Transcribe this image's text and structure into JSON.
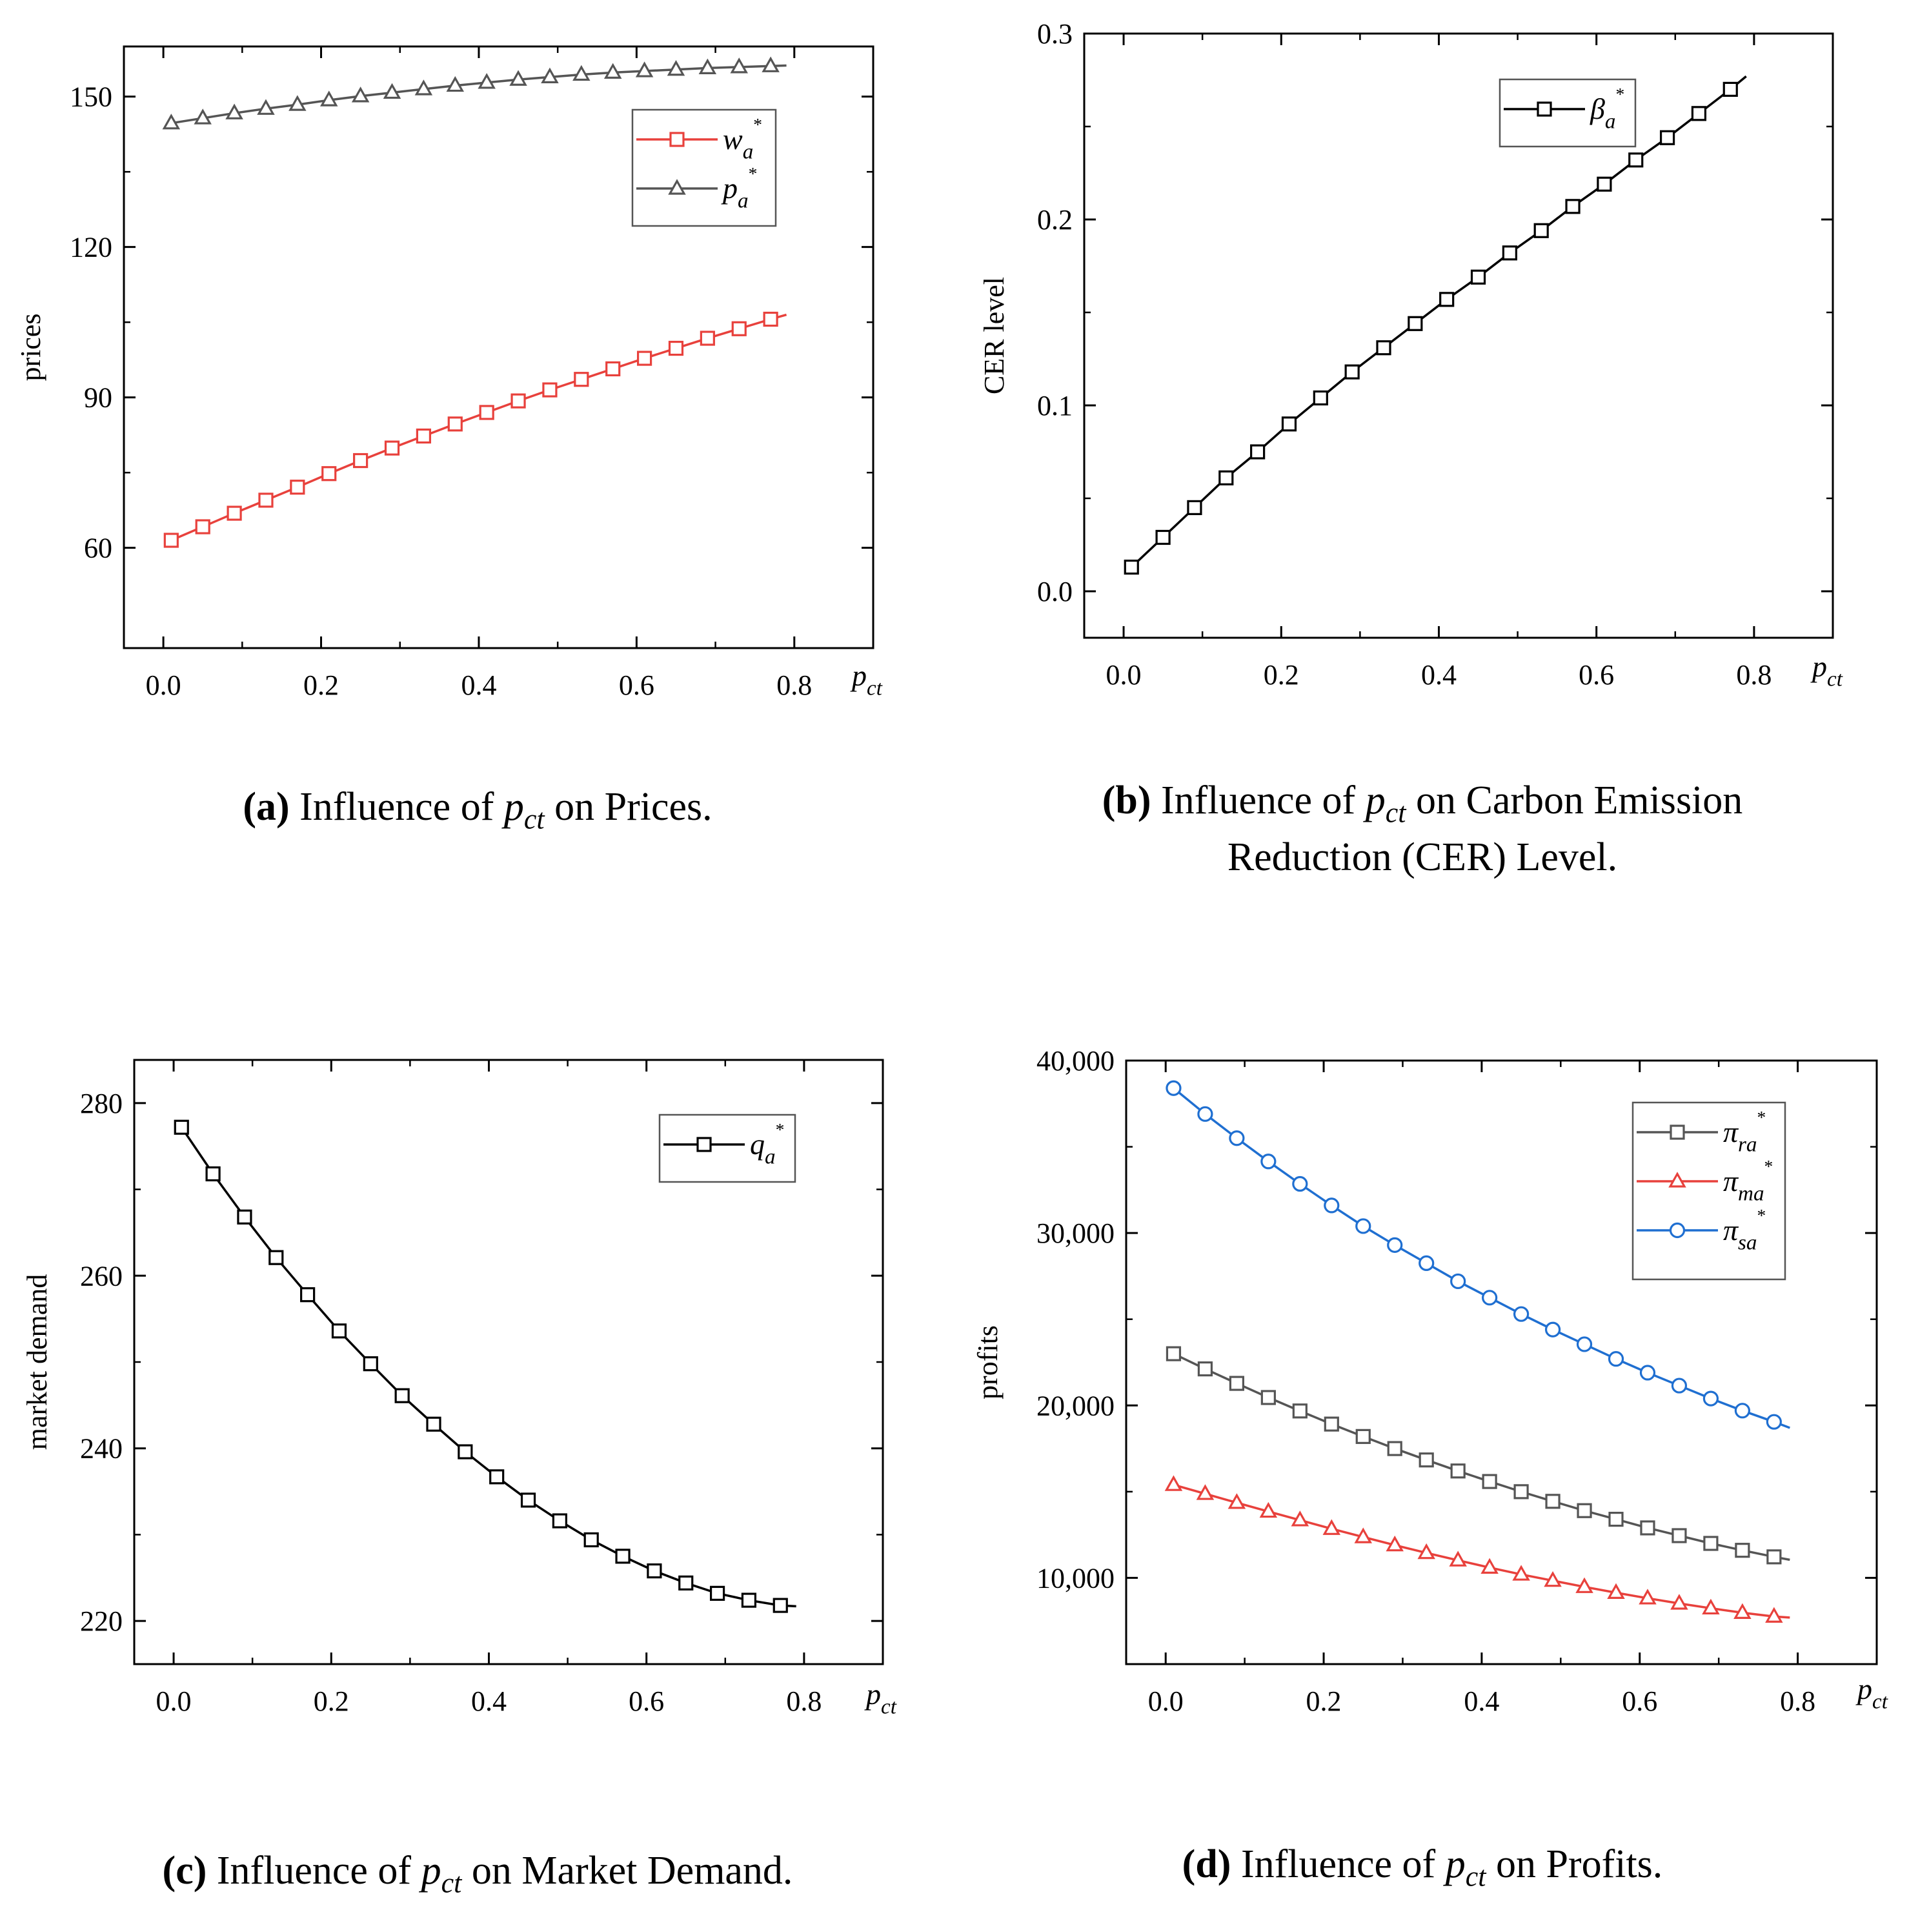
{
  "chart_data": [
    {
      "type": "line",
      "xlabel_var": "p",
      "xlabel_sub": "ct",
      "ylabel": "prices",
      "xlim": [
        -0.05,
        0.9
      ],
      "ylim": [
        40,
        160
      ],
      "xticks": [
        0.0,
        0.2,
        0.4,
        0.6,
        0.8
      ],
      "xtick_labels": [
        "0.0",
        "0.2",
        "0.4",
        "0.6",
        "0.8"
      ],
      "yticks": [
        60,
        90,
        120,
        150
      ],
      "ytick_labels": [
        "60",
        "90",
        "120",
        "150"
      ],
      "legend_position": "top-right",
      "x": [
        0.01,
        0.05,
        0.09,
        0.13,
        0.17,
        0.21,
        0.25,
        0.29,
        0.33,
        0.37,
        0.41,
        0.45,
        0.49,
        0.53,
        0.57,
        0.61,
        0.65,
        0.69,
        0.73,
        0.77
      ],
      "series": [
        {
          "name": "w",
          "sub": "a",
          "sup": "*",
          "color": "#e8413c",
          "marker": "square",
          "line_end": [
            0.79,
            106.5
          ],
          "values": [
            61.5,
            64.2,
            66.9,
            69.5,
            72.1,
            74.8,
            77.4,
            79.9,
            82.3,
            84.7,
            87.0,
            89.3,
            91.5,
            93.6,
            95.7,
            97.8,
            99.8,
            101.8,
            103.7,
            105.6
          ]
        },
        {
          "name": "p",
          "sub": "a",
          "sup": "*",
          "color": "#555555",
          "marker": "triangle",
          "line_end": [
            0.79,
            156.2
          ],
          "values": [
            144.7,
            145.7,
            146.7,
            147.6,
            148.4,
            149.3,
            150.1,
            150.8,
            151.5,
            152.2,
            152.8,
            153.4,
            153.9,
            154.4,
            154.8,
            155.1,
            155.4,
            155.7,
            155.9,
            156.1
          ]
        }
      ]
    },
    {
      "type": "line",
      "xlabel_var": "p",
      "xlabel_sub": "ct",
      "ylabel": "CER level",
      "xlim": [
        -0.05,
        0.9
      ],
      "ylim": [
        -0.025,
        0.3
      ],
      "xticks": [
        0.0,
        0.2,
        0.4,
        0.6,
        0.8
      ],
      "xtick_labels": [
        "0.0",
        "0.2",
        "0.4",
        "0.6",
        "0.8"
      ],
      "yticks": [
        0.0,
        0.1,
        0.2,
        0.3
      ],
      "ytick_labels": [
        "0.0",
        "0.1",
        "0.2",
        "0.3"
      ],
      "legend_position": "top-right",
      "x": [
        0.01,
        0.05,
        0.09,
        0.13,
        0.17,
        0.21,
        0.25,
        0.29,
        0.33,
        0.37,
        0.41,
        0.45,
        0.49,
        0.53,
        0.57,
        0.61,
        0.65,
        0.69,
        0.73,
        0.77
      ],
      "series": [
        {
          "name": "β",
          "sub": "a",
          "sup": "*",
          "color": "#000000",
          "marker": "square",
          "line_end": [
            0.79,
            0.277
          ],
          "values": [
            0.013,
            0.029,
            0.045,
            0.061,
            0.075,
            0.09,
            0.104,
            0.118,
            0.131,
            0.144,
            0.157,
            0.169,
            0.182,
            0.194,
            0.207,
            0.219,
            0.232,
            0.244,
            0.257,
            0.27
          ]
        }
      ]
    },
    {
      "type": "line",
      "xlabel_var": "p",
      "xlabel_sub": "ct",
      "ylabel": "market demand",
      "xlim": [
        -0.05,
        0.9
      ],
      "ylim": [
        215,
        285
      ],
      "xticks": [
        0.0,
        0.2,
        0.4,
        0.6,
        0.8
      ],
      "xtick_labels": [
        "0.0",
        "0.2",
        "0.4",
        "0.6",
        "0.8"
      ],
      "yticks": [
        220,
        240,
        260,
        280
      ],
      "ytick_labels": [
        "220",
        "240",
        "260",
        "280"
      ],
      "legend_position": "top-right",
      "x": [
        0.01,
        0.05,
        0.09,
        0.13,
        0.17,
        0.21,
        0.25,
        0.29,
        0.33,
        0.37,
        0.41,
        0.45,
        0.49,
        0.53,
        0.57,
        0.61,
        0.65,
        0.69,
        0.73,
        0.77
      ],
      "series": [
        {
          "name": "q",
          "sub": "a",
          "sup": "*",
          "color": "#000000",
          "marker": "square",
          "line_end": [
            0.79,
            221.7
          ],
          "values": [
            277.2,
            271.8,
            266.8,
            262.1,
            257.8,
            253.6,
            249.8,
            246.1,
            242.8,
            239.6,
            236.7,
            234.0,
            231.6,
            229.4,
            227.5,
            225.8,
            224.4,
            223.2,
            222.4,
            221.8
          ]
        }
      ]
    },
    {
      "type": "line",
      "xlabel_var": "p",
      "xlabel_sub": "ct",
      "ylabel": "profits",
      "xlim": [
        -0.05,
        0.9
      ],
      "ylim": [
        5000,
        40000
      ],
      "xticks": [
        0.0,
        0.2,
        0.4,
        0.6,
        0.8
      ],
      "xtick_labels": [
        "0.0",
        "0.2",
        "0.4",
        "0.6",
        "0.8"
      ],
      "yticks": [
        10000,
        20000,
        30000,
        40000
      ],
      "ytick_labels": [
        "10,000",
        "20,000",
        "30,000",
        "40,000"
      ],
      "legend_position": "top-right",
      "x": [
        0.01,
        0.05,
        0.09,
        0.13,
        0.17,
        0.21,
        0.25,
        0.29,
        0.33,
        0.37,
        0.41,
        0.45,
        0.49,
        0.53,
        0.57,
        0.61,
        0.65,
        0.69,
        0.73,
        0.77
      ],
      "series": [
        {
          "name": "π",
          "sub": "ra",
          "sup": "*",
          "color": "#555555",
          "marker": "square",
          "line_end": [
            0.79,
            11050
          ],
          "values": [
            23000,
            22120,
            21280,
            20460,
            19680,
            18920,
            18200,
            17500,
            16840,
            16200,
            15590,
            15000,
            14440,
            13900,
            13400,
            12900,
            12450,
            12000,
            11600,
            11220
          ]
        },
        {
          "name": "π",
          "sub": "ma",
          "sup": "*",
          "color": "#e8413c",
          "marker": "triangle",
          "line_end": [
            0.79,
            7700
          ],
          "values": [
            15400,
            14880,
            14360,
            13850,
            13350,
            12850,
            12370,
            11900,
            11450,
            11020,
            10600,
            10200,
            9840,
            9480,
            9140,
            8820,
            8520,
            8240,
            7980,
            7760
          ]
        },
        {
          "name": "π",
          "sub": "sa",
          "sup": "*",
          "color": "#1f6fd1",
          "marker": "circle",
          "line_end": [
            0.79,
            18700
          ],
          "values": [
            38400,
            36900,
            35500,
            34150,
            32850,
            31600,
            30400,
            29300,
            28250,
            27200,
            26250,
            25300,
            24400,
            23550,
            22700,
            21900,
            21150,
            20400,
            19700,
            19050
          ]
        }
      ]
    }
  ],
  "captions": [
    {
      "label": "(a)",
      "pre": " Influence of ",
      "math_var": "p",
      "math_sub": "ct",
      "post": " on Prices."
    },
    {
      "label": "(b)",
      "pre": " Influence of ",
      "math_var": "p",
      "math_sub": "ct",
      "post": " on Carbon Emission",
      "line2": "Reduction (CER) Level."
    },
    {
      "label": "(c)",
      "pre": " Influence of ",
      "math_var": "p",
      "math_sub": "ct",
      "post": " on Market Demand."
    },
    {
      "label": "(d)",
      "pre": " Influence of ",
      "math_var": "p",
      "math_sub": "ct",
      "post": " on Profits."
    }
  ]
}
